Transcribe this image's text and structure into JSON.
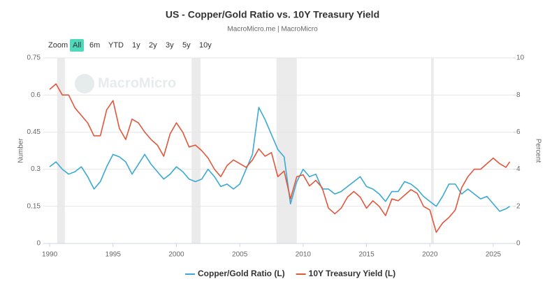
{
  "chart_data": {
    "type": "line",
    "title": "US - Copper/Gold Ratio vs. 10Y Treasury Yield",
    "subtitle": "MacroMicro.me | MacroMicro",
    "watermark": "MacroMicro",
    "zoom_label": "Zoom",
    "zoom_buttons": [
      "All",
      "6m",
      "YTD",
      "1y",
      "2y",
      "3y",
      "5y",
      "10y"
    ],
    "zoom_selected": 0,
    "y_label": "Number",
    "y2_label": "Percent",
    "x": [
      1990,
      1990.5,
      1991,
      1991.5,
      1992,
      1992.5,
      1993,
      1993.5,
      1994,
      1994.5,
      1995,
      1995.5,
      1996,
      1996.5,
      1997,
      1997.5,
      1998,
      1998.5,
      1999,
      1999.5,
      2000,
      2000.5,
      2001,
      2001.5,
      2002,
      2002.5,
      2003,
      2003.5,
      2004,
      2004.5,
      2005,
      2005.5,
      2006,
      2006.5,
      2007,
      2007.5,
      2008,
      2008.5,
      2009,
      2009.5,
      2010,
      2010.5,
      2011,
      2011.5,
      2012,
      2012.5,
      2013,
      2013.5,
      2014,
      2014.5,
      2015,
      2015.5,
      2016,
      2016.5,
      2017,
      2017.5,
      2018,
      2018.5,
      2019,
      2019.5,
      2020,
      2020.5,
      2021,
      2021.5,
      2022,
      2022.5,
      2023,
      2023.5,
      2024,
      2024.5,
      2025,
      2025.5,
      2026,
      2026.3
    ],
    "series": [
      {
        "name": "Copper/Gold Ratio (L)",
        "color": "#3aa9d4",
        "axis": "y",
        "values": [
          0.31,
          0.33,
          0.3,
          0.28,
          0.29,
          0.31,
          0.27,
          0.22,
          0.25,
          0.31,
          0.36,
          0.35,
          0.33,
          0.28,
          0.32,
          0.36,
          0.32,
          0.29,
          0.26,
          0.28,
          0.31,
          0.29,
          0.26,
          0.25,
          0.26,
          0.3,
          0.27,
          0.23,
          0.24,
          0.22,
          0.24,
          0.3,
          0.36,
          0.55,
          0.5,
          0.44,
          0.38,
          0.35,
          0.16,
          0.25,
          0.3,
          0.27,
          0.28,
          0.22,
          0.22,
          0.2,
          0.21,
          0.23,
          0.25,
          0.27,
          0.23,
          0.22,
          0.2,
          0.17,
          0.21,
          0.21,
          0.25,
          0.24,
          0.22,
          0.19,
          0.17,
          0.15,
          0.19,
          0.24,
          0.24,
          0.2,
          0.22,
          0.2,
          0.18,
          0.19,
          0.16,
          0.13,
          0.14,
          0.15
        ]
      },
      {
        "name": "10Y Treasury Yield (L)",
        "color": "#e0573b",
        "axis": "y2",
        "values": [
          8.3,
          8.6,
          8.0,
          8.0,
          7.3,
          6.9,
          6.5,
          5.8,
          5.8,
          7.2,
          7.7,
          6.2,
          5.6,
          6.7,
          6.5,
          6.0,
          5.6,
          5.3,
          4.7,
          5.9,
          6.5,
          6.0,
          5.2,
          5.3,
          5.0,
          4.6,
          4.0,
          3.6,
          4.2,
          4.5,
          4.3,
          4.1,
          4.5,
          5.1,
          4.7,
          4.9,
          3.6,
          3.9,
          2.4,
          3.6,
          3.7,
          3.1,
          3.4,
          3.0,
          1.9,
          1.6,
          1.9,
          2.5,
          2.8,
          2.5,
          1.9,
          2.3,
          2.0,
          1.5,
          2.4,
          2.3,
          2.6,
          2.9,
          2.7,
          2.0,
          1.8,
          0.6,
          1.1,
          1.4,
          1.8,
          3.0,
          3.6,
          4.0,
          4.0,
          4.3,
          4.6,
          4.3,
          4.1,
          4.4
        ]
      }
    ],
    "recessions": [
      [
        1990.6,
        1991.2
      ],
      [
        2001.2,
        2001.9
      ],
      [
        2007.9,
        2009.5
      ],
      [
        2020.1,
        2020.3
      ]
    ],
    "xlim": [
      1989.5,
      2026.6
    ],
    "xticks": [
      1990,
      1995,
      2000,
      2005,
      2010,
      2015,
      2020,
      2025
    ],
    "ylim": [
      0,
      0.75
    ],
    "yticks": [
      0,
      0.15,
      0.3,
      0.45,
      0.6,
      0.75
    ],
    "y2lim": [
      0,
      10
    ],
    "y2ticks": [
      0,
      2,
      4,
      6,
      8,
      10
    ],
    "grid": true
  }
}
